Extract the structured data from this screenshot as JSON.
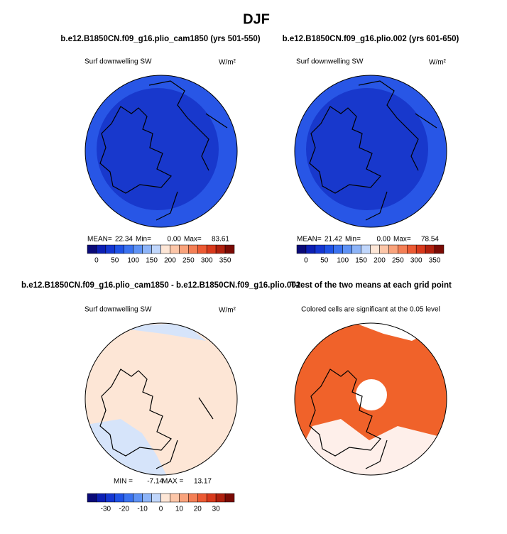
{
  "title": "DJF",
  "panels": [
    {
      "title": "b.e12.B1850CN.f09_g16.plio_cam1850 (yrs 501-550)",
      "field": "Surf downwelling SW",
      "units": "W/m²",
      "stats": [
        [
          "MEAN=",
          "22.34"
        ],
        [
          "Min=",
          "0.00"
        ],
        [
          "Max=",
          "83.61"
        ]
      ],
      "colorbar": {
        "ticks": [
          0,
          50,
          100,
          150,
          200,
          250,
          300,
          350
        ]
      }
    },
    {
      "title": "b.e12.B1850CN.f09_g16.plio.002 (yrs 601-650)",
      "field": "Surf downwelling SW",
      "units": "W/m²",
      "stats": [
        [
          "MEAN=",
          "21.42"
        ],
        [
          "Min=",
          "0.00"
        ],
        [
          "Max=",
          "78.54"
        ]
      ],
      "colorbar": {
        "ticks": [
          0,
          50,
          100,
          150,
          200,
          250,
          300,
          350
        ]
      }
    },
    {
      "title": "b.e12.B1850CN.f09_g16.plio_cam1850 - b.e12.B1850CN.f09_g16.plio.002",
      "field": "Surf downwelling SW",
      "units": "W/m²",
      "stats": [
        [
          "MIN =",
          "-7.14"
        ],
        [
          "MAX =",
          "13.17"
        ]
      ],
      "colorbar": {
        "ticks": [
          -30,
          -20,
          -10,
          0,
          10,
          20,
          30
        ]
      }
    },
    {
      "title": "T-test of the two means at each grid point",
      "note": "Colored cells are significant at the 0.05 level"
    }
  ],
  "palettes": {
    "abs": [
      "#0a0a78",
      "#0c1fb4",
      "#1436d2",
      "#1f52e6",
      "#3a72f0",
      "#5e92f5",
      "#8db4f8",
      "#c0d6fb",
      "#fde6d6",
      "#fcc6a8",
      "#f9a37c",
      "#f47f55",
      "#ec5a33",
      "#d8391c",
      "#b0200e",
      "#7a0a04"
    ],
    "diff": [
      "#0a0a78",
      "#0c1fb4",
      "#1436d2",
      "#1f52e6",
      "#3a72f0",
      "#5e92f5",
      "#8db4f8",
      "#c0d6fb",
      "#fde6d6",
      "#fcc6a8",
      "#f9a37c",
      "#f47f55",
      "#ec5a33",
      "#d8391c",
      "#b0200e",
      "#7a0a04"
    ]
  }
}
